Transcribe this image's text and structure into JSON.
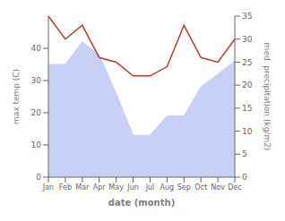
{
  "chart_data": {
    "type": "area",
    "categories": [
      "Jan",
      "Feb",
      "Mar",
      "Apr",
      "May",
      "Jun",
      "Jul",
      "Aug",
      "Sep",
      "Oct",
      "Nov",
      "Dec"
    ],
    "series": [
      {
        "type": "area",
        "color": "#c8d0f5",
        "values": [
          35,
          35,
          42,
          38,
          26,
          13,
          13,
          19,
          19,
          28,
          32,
          36
        ]
      },
      {
        "type": "line",
        "color": "#c0392b",
        "axis": "y2",
        "values": [
          35,
          30,
          33,
          26,
          25,
          22,
          22,
          24,
          33,
          26,
          25,
          30
        ]
      }
    ],
    "xlabel": "date (month)",
    "ylabel": "max temp (C)",
    "y2label": "med. precipitation (kg/m2)",
    "ylim": [
      0,
      50
    ],
    "yticks": [
      0,
      10,
      20,
      30,
      40
    ],
    "y2lim": [
      0,
      35
    ],
    "y2ticks": [
      0,
      5,
      10,
      15,
      20,
      25,
      30,
      35
    ],
    "grid": false
  }
}
